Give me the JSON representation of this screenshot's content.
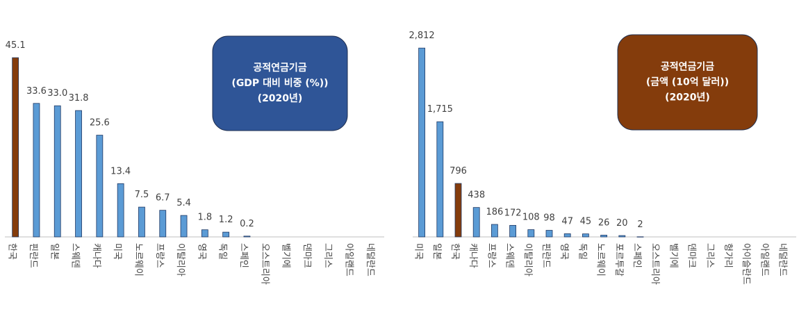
{
  "chart_data": [
    {
      "type": "bar",
      "categories": [
        "한국",
        "핀란드",
        "일본",
        "스웨덴",
        "캐나다",
        "미국",
        "노르웨이",
        "프랑스",
        "이탈리아",
        "영국",
        "독일",
        "스페인",
        "오스트리아",
        "벨기에",
        "덴마크",
        "그리스",
        "아일랜드",
        "네덜란드"
      ],
      "values": [
        45.1,
        33.6,
        33.0,
        31.8,
        25.6,
        13.4,
        7.5,
        6.7,
        5.4,
        1.8,
        1.2,
        0.2,
        null,
        null,
        null,
        null,
        null,
        null
      ],
      "value_labels": [
        "45.1",
        "33.6",
        "33.0",
        "31.8",
        "25.6",
        "13.4",
        "7.5",
        "6.7",
        "5.4",
        "1.8",
        "1.2",
        "0.2",
        null,
        null,
        null,
        null,
        null,
        null
      ],
      "color": "#5b9bd5",
      "highlight": {
        "index": 0,
        "color": "#843c0c"
      },
      "ylim": [
        0,
        50
      ],
      "annotation": [
        "공적연금기금",
        "(GDP 대비 비중 (%))",
        "(2020년)"
      ],
      "annotation_color": "#2f5597"
    },
    {
      "type": "bar",
      "categories": [
        "미국",
        "일본",
        "한국",
        "캐나다",
        "프랑스",
        "스웨덴",
        "이탈리아",
        "핀란드",
        "영국",
        "독일",
        "노르웨이",
        "포르투갈",
        "스페인",
        "오스트리아",
        "벨기에",
        "덴마크",
        "그리스",
        "헝가리",
        "아이슬란드",
        "아일랜드",
        "네덜란드"
      ],
      "values": [
        2812,
        1715,
        796,
        438,
        186,
        172,
        108,
        98,
        47,
        45,
        26,
        20,
        2,
        null,
        null,
        null,
        null,
        null,
        null,
        null,
        null
      ],
      "value_labels": [
        "2,812",
        "1,715",
        "796",
        "438",
        "186",
        "172",
        "108",
        "98",
        "47",
        "45",
        "26",
        "20",
        "2",
        null,
        null,
        null,
        null,
        null,
        null,
        null,
        null
      ],
      "color": "#5b9bd5",
      "highlight": {
        "index": 2,
        "color": "#843c0c"
      },
      "ylim": [
        0,
        3000
      ],
      "annotation": [
        "공적연금기금",
        "(금액 (10억 달러))",
        "(2020년)"
      ],
      "annotation_color": "#843c0c"
    }
  ]
}
